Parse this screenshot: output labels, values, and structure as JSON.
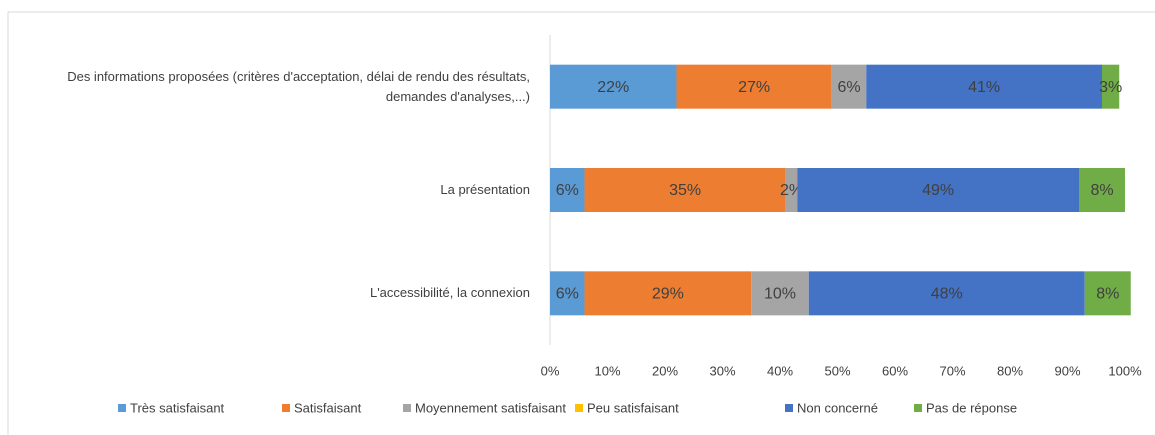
{
  "chart_data": {
    "type": "stacked_barh",
    "categories": [
      "Des informations proposées (critères d'acceptation, délai de rendu des résultats, demandes d'analyses,...)",
      "La présentation",
      "L'accessibilité, la connexion"
    ],
    "series": [
      {
        "name": "Très satisfaisant",
        "color": "#5b9bd5",
        "values": [
          22,
          6,
          6
        ],
        "value_labels": [
          "22%",
          "6%",
          "6%"
        ]
      },
      {
        "name": "Satisfaisant",
        "color": "#ed7d31",
        "values": [
          27,
          35,
          29
        ],
        "value_labels": [
          "27%",
          "35%",
          "29%"
        ]
      },
      {
        "name": "Moyennement satisfaisant",
        "color": "#a5a5a5",
        "values": [
          6,
          2,
          10
        ],
        "value_labels": [
          "6%",
          "2%",
          "10%"
        ]
      },
      {
        "name": "Peu satisfaisant",
        "color": "#ffc000",
        "values": [
          0,
          0,
          0
        ],
        "value_labels": [
          null,
          null,
          null
        ]
      },
      {
        "name": "Non concerné",
        "color": "#4472c4",
        "values": [
          41,
          49,
          48
        ],
        "value_labels": [
          "41%",
          "49%",
          "48%"
        ]
      },
      {
        "name": "Pas de réponse",
        "color": "#70ad47",
        "values": [
          3,
          8,
          8
        ],
        "value_labels": [
          "3%",
          "8%",
          "8%"
        ]
      }
    ],
    "xlim": [
      0,
      100
    ],
    "xticks": [
      {
        "value": 0,
        "label": "0%"
      },
      {
        "value": 10,
        "label": "10%"
      },
      {
        "value": 20,
        "label": "20%"
      },
      {
        "value": 30,
        "label": "30%"
      },
      {
        "value": 40,
        "label": "40%"
      },
      {
        "value": 50,
        "label": "50%"
      },
      {
        "value": 60,
        "label": "60%"
      },
      {
        "value": 70,
        "label": "70%"
      },
      {
        "value": 80,
        "label": "80%"
      },
      {
        "value": 90,
        "label": "90%"
      },
      {
        "value": 100,
        "label": "100%"
      }
    ],
    "legend": "bottom"
  }
}
